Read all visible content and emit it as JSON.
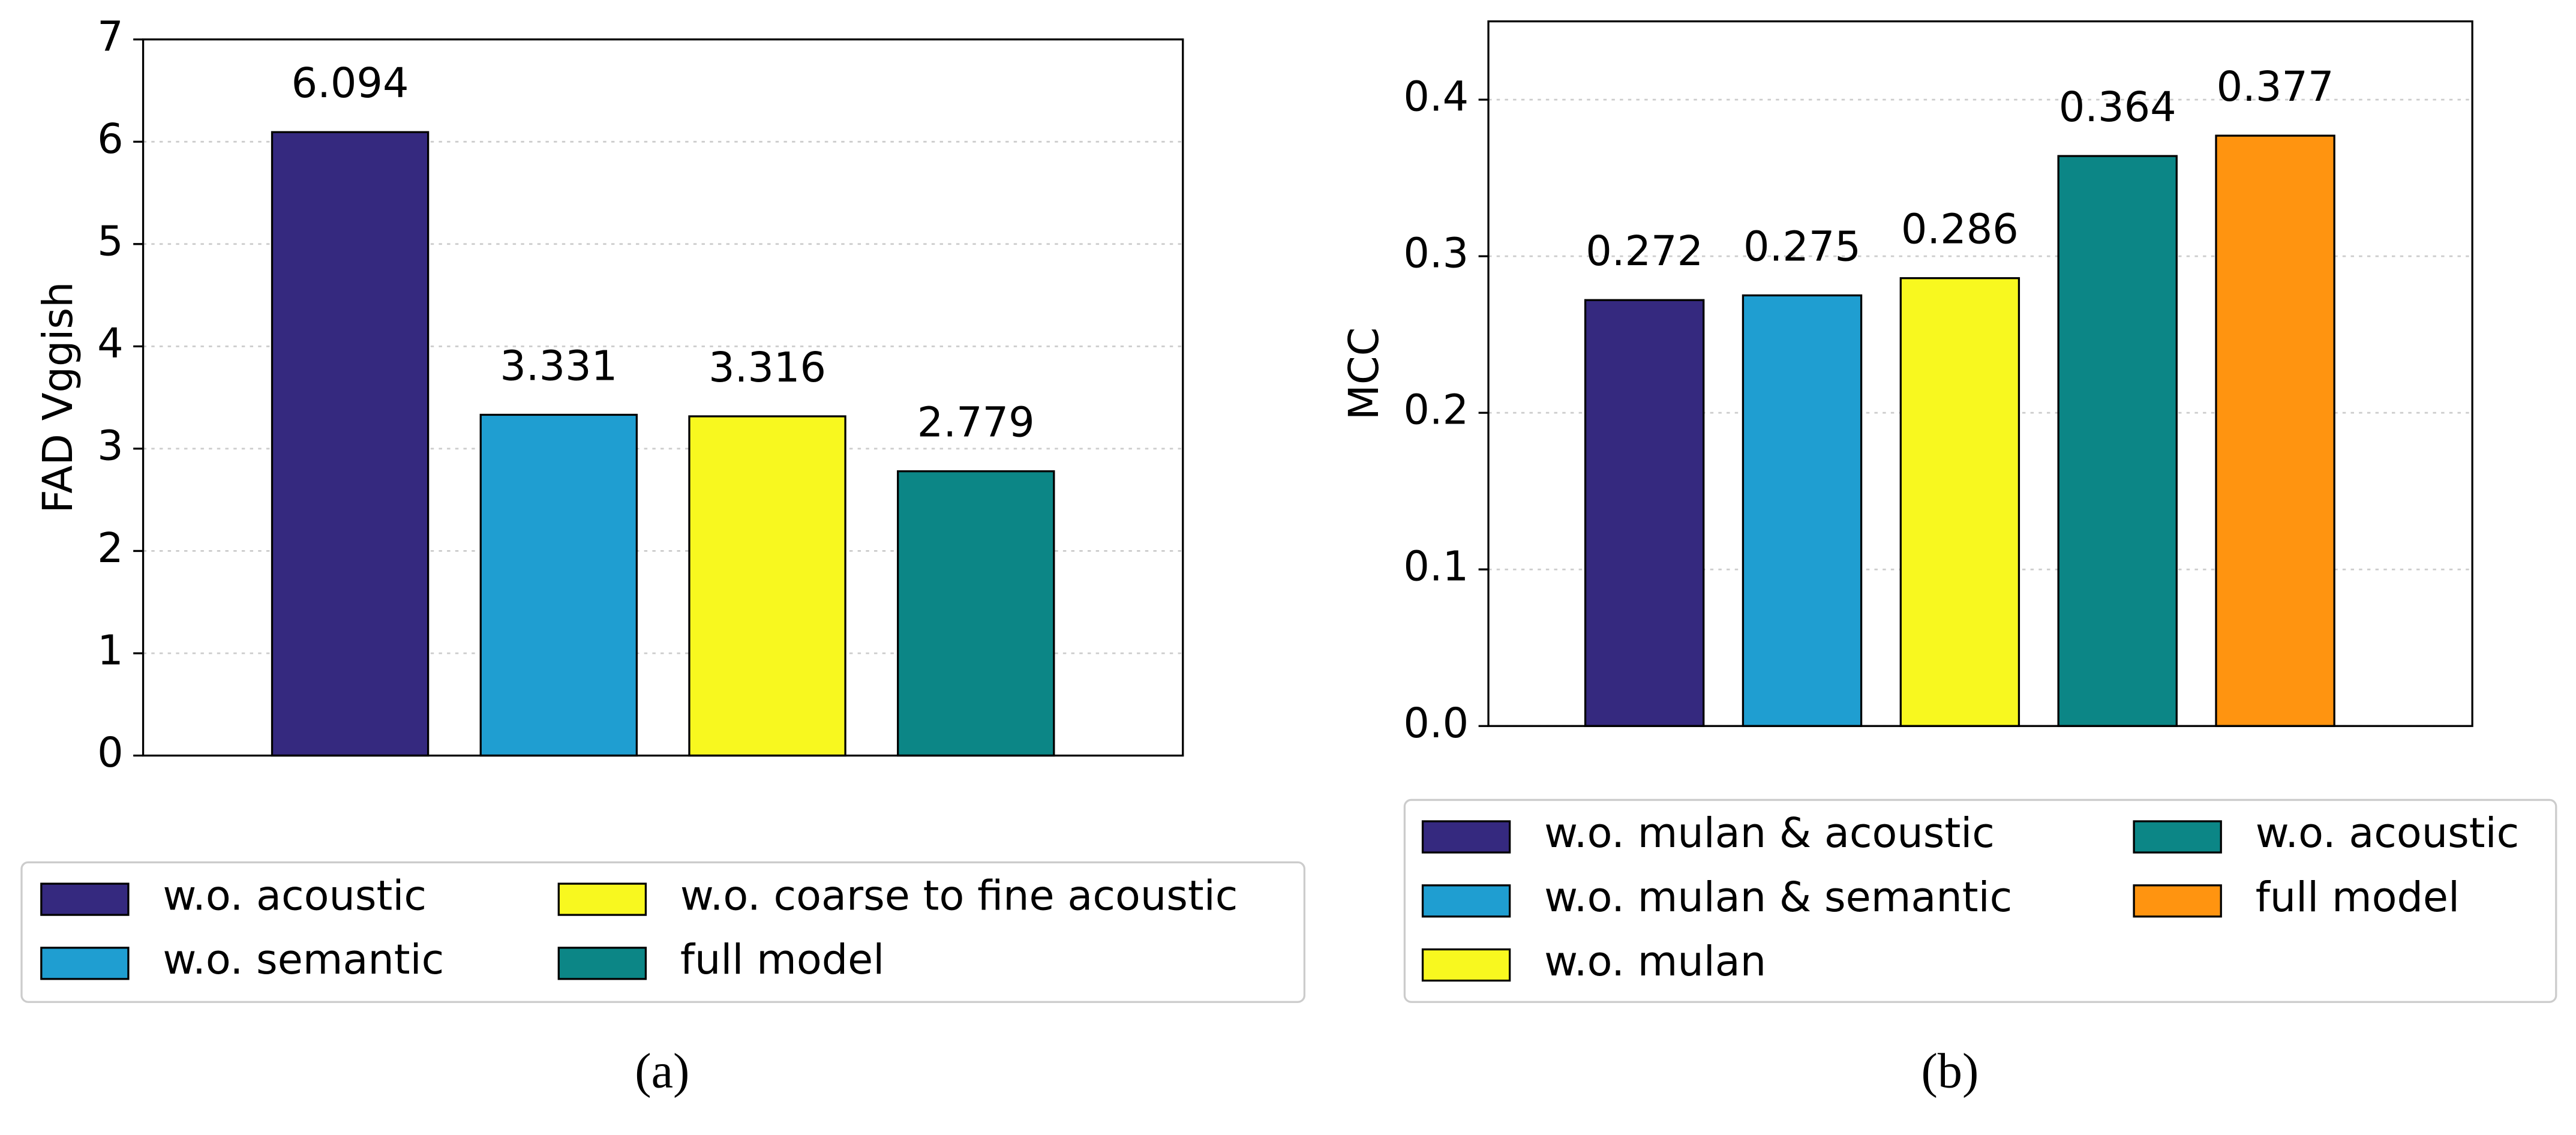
{
  "chart_data": [
    {
      "type": "bar",
      "ylabel": "FAD Vggish",
      "caption": "(a)",
      "ylim": [
        0,
        7
      ],
      "yticks": [
        0,
        1,
        2,
        3,
        4,
        5,
        6,
        7
      ],
      "grid": true,
      "series": [
        {
          "name": "w.o. acoustic",
          "color": "#35297f",
          "values": [
            6.094
          ]
        },
        {
          "name": "w.o. semantic",
          "color": "#1f9ed1",
          "values": [
            3.331
          ]
        },
        {
          "name": "w.o. coarse to fine acoustic",
          "color": "#f8f81f",
          "values": [
            3.316
          ]
        },
        {
          "name": "full model",
          "color": "#0c8686",
          "values": [
            2.779
          ]
        }
      ]
    },
    {
      "type": "bar",
      "ylabel": "MCC",
      "caption": "(b)",
      "ylim": [
        0,
        0.45
      ],
      "yticks": [
        {
          "value": 0,
          "label": "0.0"
        },
        0.1,
        0.2,
        0.3,
        0.4
      ],
      "grid": true,
      "series": [
        {
          "name": "w.o. mulan & acoustic",
          "color": "#35297f",
          "values": [
            0.272
          ]
        },
        {
          "name": "w.o. mulan & semantic",
          "color": "#1f9ed1",
          "values": [
            0.275
          ]
        },
        {
          "name": "w.o. mulan",
          "color": "#f8f81f",
          "values": [
            0.286
          ]
        },
        {
          "name": "w.o. acoustic",
          "color": "#0c8686",
          "values": [
            0.364
          ]
        },
        {
          "name": "full model",
          "color": "#ff9410",
          "values": [
            0.377
          ]
        }
      ]
    }
  ]
}
